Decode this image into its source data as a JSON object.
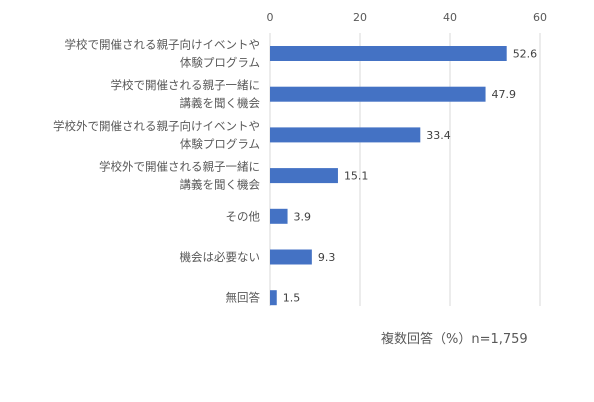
{
  "chart_data": {
    "type": "bar",
    "orientation": "horizontal",
    "categories": [
      [
        "学校で開催される親子向けイベントや",
        "体験プログラム"
      ],
      [
        "学校で開催される親子一緒に",
        "講義を聞く機会"
      ],
      [
        "学校外で開催される親子向けイベントや",
        "体験プログラム"
      ],
      [
        "学校外で開催される親子一緒に",
        "講義を聞く機会"
      ],
      [
        "その他"
      ],
      [
        "機会は必要ない"
      ],
      [
        "無回答"
      ]
    ],
    "values": [
      52.6,
      47.9,
      33.4,
      15.1,
      3.9,
      9.3,
      1.5
    ],
    "data_labels": [
      "52.6",
      "47.9",
      "33.4",
      "15.1",
      "3.9",
      "9.3",
      "1.5"
    ],
    "xlim": [
      0,
      60
    ],
    "ticks": [
      0,
      20,
      40,
      60
    ],
    "tick_labels": [
      "0",
      "20",
      "40",
      "60"
    ],
    "axis_position": "top",
    "grid": true,
    "bar_color": "#4472c4",
    "grid_color": "#d9d9d9",
    "title": "",
    "xlabel": "",
    "ylabel": ""
  },
  "note": "複数回答（%）n=1,759"
}
